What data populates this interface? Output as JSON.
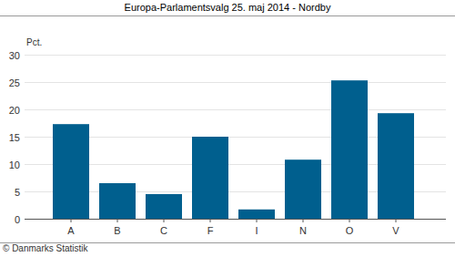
{
  "chart_data": {
    "type": "bar",
    "title": "Europa-Parlamentsvalg 25. maj 2014 - Nordby",
    "ylabel": "Pct.",
    "source": "© Danmarks Statistik",
    "categories": [
      "A",
      "B",
      "C",
      "F",
      "I",
      "N",
      "O",
      "V"
    ],
    "values": [
      17.3,
      6.5,
      4.5,
      15.0,
      1.7,
      10.8,
      25.3,
      19.3
    ],
    "color": "#005f8e",
    "ylim": [
      0,
      30
    ],
    "yticks": [
      0,
      5,
      10,
      15,
      20,
      25,
      30
    ],
    "grid": true
  }
}
